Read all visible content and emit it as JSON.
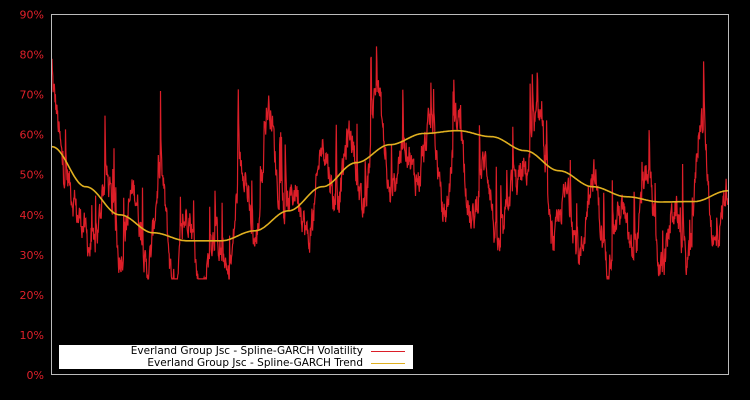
{
  "chart_data": {
    "type": "line",
    "title": "",
    "xlabel": "",
    "ylabel": "",
    "ylim": [
      0,
      90
    ],
    "y_ticks": [
      "0%",
      "10%",
      "20%",
      "30%",
      "40%",
      "50%",
      "60%",
      "70%",
      "80%",
      "90%"
    ],
    "x_ticks": [],
    "grid": false,
    "legend_position": "lower-left",
    "background": "#000000",
    "series": [
      {
        "name": "Everland Group Jsc - Spline-GARCH Volatility",
        "color": "#dc1e28",
        "x_frac": [
          0.0,
          0.02,
          0.04,
          0.06,
          0.08,
          0.1,
          0.12,
          0.14,
          0.16,
          0.18,
          0.2,
          0.22,
          0.24,
          0.26,
          0.28,
          0.3,
          0.32,
          0.34,
          0.36,
          0.38,
          0.4,
          0.42,
          0.44,
          0.46,
          0.48,
          0.5,
          0.52,
          0.54,
          0.56,
          0.58,
          0.6,
          0.62,
          0.64,
          0.66,
          0.68,
          0.7,
          0.72,
          0.74,
          0.76,
          0.78,
          0.8,
          0.82,
          0.84,
          0.86,
          0.88,
          0.9,
          0.92,
          0.94,
          0.96,
          0.98,
          1.0
        ],
        "values": [
          84,
          60,
          48,
          38,
          58,
          36,
          55,
          32,
          58,
          28,
          48,
          26,
          42,
          30,
          62,
          40,
          78,
          48,
          55,
          42,
          68,
          52,
          72,
          50,
          86,
          55,
          70,
          60,
          76,
          50,
          78,
          48,
          65,
          40,
          58,
          62,
          78,
          42,
          55,
          38,
          60,
          35,
          50,
          38,
          60,
          33,
          50,
          35,
          75,
          40,
          57
        ]
      },
      {
        "name": "Everland Group Jsc - Spline-GARCH Trend",
        "color": "#e0b020",
        "x_frac": [
          0.0,
          0.05,
          0.1,
          0.15,
          0.2,
          0.25,
          0.3,
          0.35,
          0.4,
          0.45,
          0.5,
          0.55,
          0.6,
          0.65,
          0.7,
          0.75,
          0.8,
          0.85,
          0.9,
          0.95,
          1.0
        ],
        "values": [
          57,
          47,
          40,
          35.5,
          33.5,
          33.5,
          36,
          41,
          47,
          53,
          57.5,
          60.3,
          61,
          59.5,
          56,
          51,
          47,
          44.5,
          43.2,
          43.3,
          46
        ]
      }
    ]
  },
  "legend": {
    "items": [
      {
        "label": "Everland Group Jsc - Spline-GARCH Volatility",
        "color": "#dc1e28"
      },
      {
        "label": "Everland Group Jsc - Spline-GARCH Trend",
        "color": "#e0b020"
      }
    ]
  }
}
